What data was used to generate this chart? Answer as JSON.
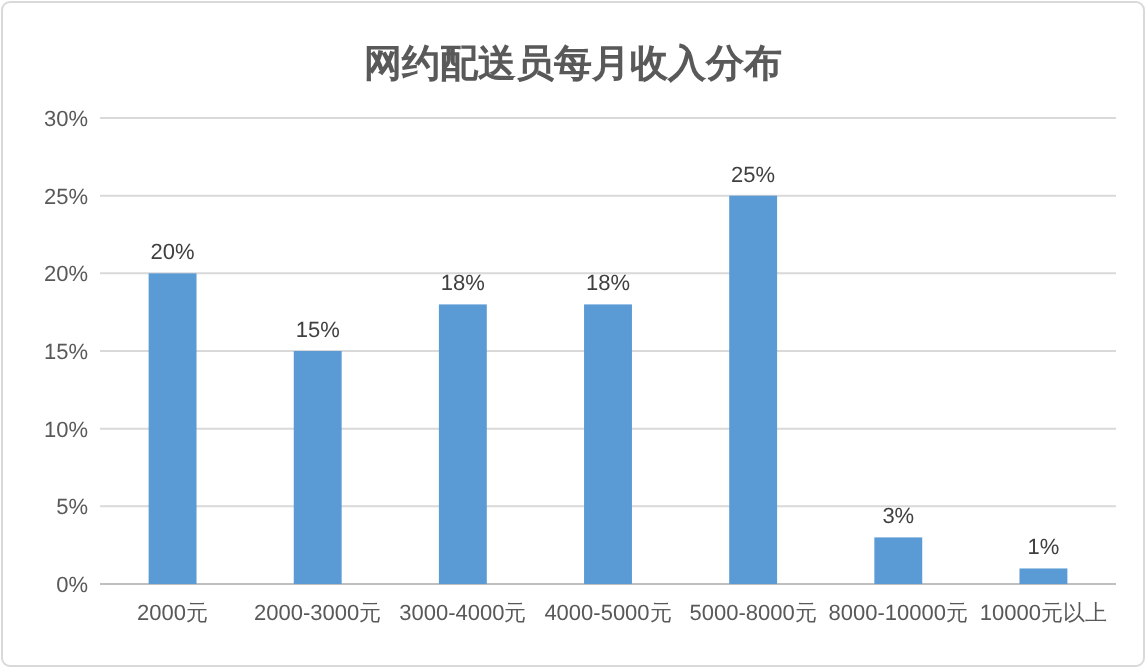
{
  "chart_data": {
    "type": "bar",
    "title": "网约配送员每月收入分布",
    "categories": [
      "2000元",
      "2000-3000元",
      "3000-4000元",
      "4000-5000元",
      "5000-8000元",
      "8000-10000元",
      "10000元以上"
    ],
    "values": [
      20,
      15,
      18,
      18,
      25,
      3,
      1
    ],
    "value_labels": [
      "20%",
      "15%",
      "18%",
      "18%",
      "25%",
      "3%",
      "1%"
    ],
    "color": "#5b9bd5",
    "ylim": [
      0,
      30
    ],
    "yticks": [
      {
        "value": 0,
        "label": "0%"
      },
      {
        "value": 5,
        "label": "5%"
      },
      {
        "value": 10,
        "label": "10%"
      },
      {
        "value": 15,
        "label": "15%"
      },
      {
        "value": 20,
        "label": "20%"
      },
      {
        "value": 25,
        "label": "25%"
      },
      {
        "value": 30,
        "label": "30%"
      }
    ],
    "grid": "y"
  }
}
